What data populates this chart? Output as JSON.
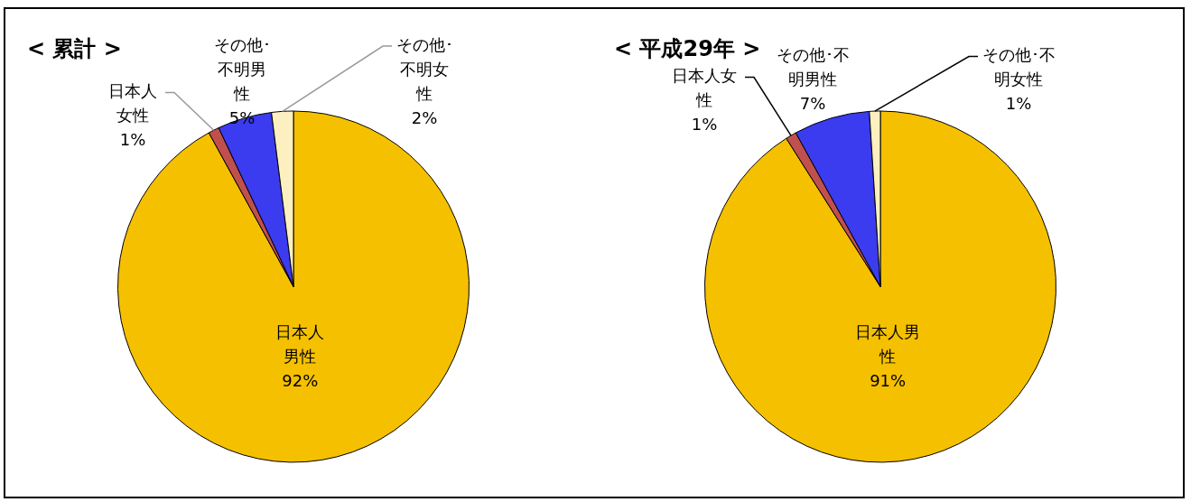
{
  "chart_data": [
    {
      "type": "pie",
      "title": "< 累計 >",
      "categories": [
        "日本人男性",
        "日本人女性",
        "その他･不明男性",
        "その他･不明女性"
      ],
      "values": [
        92,
        1,
        5,
        2
      ],
      "colors": [
        "#f5c000",
        "#c0504d",
        "#3b3bef",
        "#fdf0c0"
      ],
      "value_labels": [
        "92%",
        "1%",
        "5%",
        "2%"
      ],
      "legend": false
    },
    {
      "type": "pie",
      "title": "< 平成29年 >",
      "categories": [
        "日本人男性",
        "日本人女性",
        "その他･不明男性",
        "その他･不明女性"
      ],
      "values": [
        91,
        1,
        7,
        1
      ],
      "colors": [
        "#f5c000",
        "#c0504d",
        "#3b3bef",
        "#fdf0c0"
      ],
      "value_labels": [
        "91%",
        "1%",
        "7%",
        "1%"
      ],
      "legend": false
    }
  ]
}
